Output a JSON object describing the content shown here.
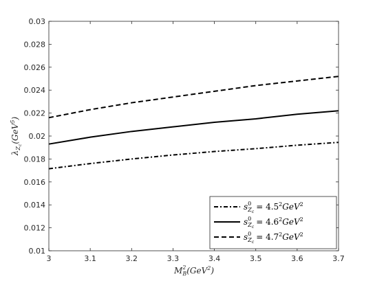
{
  "chart_data": {
    "type": "line",
    "xlabel": "M_B^2(GeV^2)",
    "ylabel": "λ_Zc(GeV^5)",
    "xlim": [
      3,
      3.7
    ],
    "ylim": [
      0.01,
      0.03
    ],
    "x_ticks": [
      "3",
      "3.1",
      "3.2",
      "3.3",
      "3.4",
      "3.5",
      "3.6",
      "3.7"
    ],
    "y_ticks": [
      "0.01",
      "0.012",
      "0.014",
      "0.016",
      "0.018",
      "0.02",
      "0.022",
      "0.024",
      "0.026",
      "0.028",
      "0.03"
    ],
    "grid": false,
    "legend_position": "bottom-right",
    "series": [
      {
        "name": "s0_Zc = 4.5^2 GeV^2",
        "style": "dash-dot",
        "x": [
          3.0,
          3.1,
          3.2,
          3.3,
          3.4,
          3.5,
          3.6,
          3.7
        ],
        "y": [
          0.01715,
          0.0176,
          0.018,
          0.01835,
          0.01865,
          0.0189,
          0.0192,
          0.01945
        ]
      },
      {
        "name": "s0_Zc = 4.6^2 GeV^2",
        "style": "solid",
        "x": [
          3.0,
          3.1,
          3.2,
          3.3,
          3.4,
          3.5,
          3.6,
          3.7
        ],
        "y": [
          0.0193,
          0.0199,
          0.0204,
          0.0208,
          0.0212,
          0.0215,
          0.0219,
          0.0222
        ]
      },
      {
        "name": "s0_Zc = 4.7^2 GeV^2",
        "style": "dashed",
        "x": [
          3.0,
          3.1,
          3.2,
          3.3,
          3.4,
          3.5,
          3.6,
          3.7
        ],
        "y": [
          0.0216,
          0.0223,
          0.0229,
          0.0234,
          0.0239,
          0.0244,
          0.0248,
          0.0252
        ]
      }
    ]
  },
  "legend": {
    "entries": [
      {
        "s": "s",
        "sup": "0",
        "sub": "Z",
        "subsub": "c",
        "value": "= 4.5",
        "sq": "2",
        "unit": "GeV",
        "usq": "2"
      },
      {
        "s": "s",
        "sup": "0",
        "sub": "Z",
        "subsub": "c",
        "value": "= 4.6",
        "sq": "2",
        "unit": "GeV",
        "usq": "2"
      },
      {
        "s": "s",
        "sup": "0",
        "sub": "Z",
        "subsub": "c",
        "value": "= 4.7",
        "sq": "2",
        "unit": "GeV",
        "usq": "2"
      }
    ]
  },
  "axes": {
    "xlabel": {
      "main": "M",
      "sup": "2",
      "sub": "B",
      "rest": "(GeV",
      "rsup": "2",
      "close": ")"
    },
    "ylabel": {
      "main": "λ",
      "sub": "Z",
      "subsub": "c",
      "rest": "(GeV",
      "rsup": "5",
      "close": ")"
    }
  }
}
